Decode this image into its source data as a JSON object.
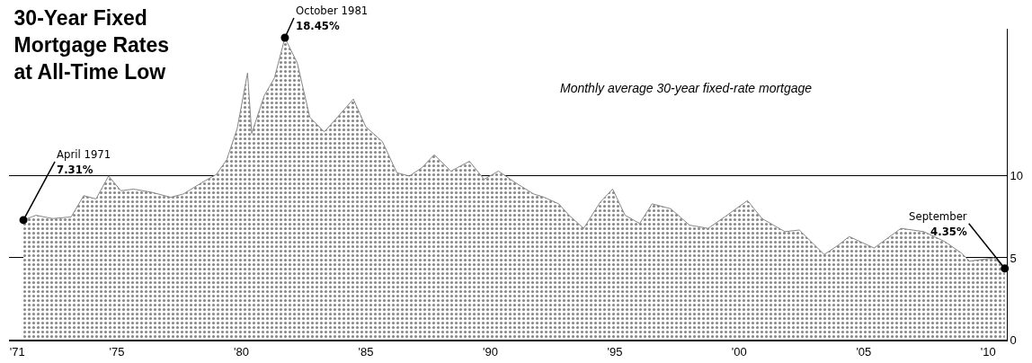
{
  "chart_data": {
    "type": "area",
    "title": "30-Year Fixed\nMortgage Rates\nat All-Time Low",
    "annotations": [
      "Monthly average 30-year fixed-rate mortgage",
      {
        "text": "April 1971\n7.31%",
        "x": "1971-04",
        "y": 7.31
      },
      {
        "text": "October 1981\n18.45%",
        "x": "1981-10",
        "y": 18.45
      },
      {
        "text": "September\n4.35%",
        "x": "2010-09",
        "y": 4.35
      }
    ],
    "x": [
      "1971-04",
      "1971-10",
      "1972-06",
      "1973-03",
      "1973-09",
      "1974-03",
      "1974-09",
      "1975-03",
      "1975-09",
      "1976-06",
      "1977-03",
      "1977-09",
      "1978-06",
      "1979-01",
      "1979-06",
      "1979-11",
      "1980-04",
      "1980-06",
      "1980-12",
      "1981-05",
      "1981-10",
      "1982-04",
      "1982-10",
      "1983-05",
      "1983-10",
      "1984-07",
      "1985-01",
      "1985-09",
      "1986-04",
      "1986-10",
      "1987-04",
      "1987-10",
      "1988-06",
      "1989-03",
      "1989-10",
      "1990-05",
      "1991-01",
      "1991-10",
      "1992-03",
      "1992-10",
      "1993-03",
      "1993-10",
      "1994-06",
      "1994-12",
      "1995-06",
      "1996-01",
      "1996-07",
      "1997-04",
      "1998-01",
      "1998-10",
      "1999-06",
      "2000-05",
      "2000-12",
      "2001-11",
      "2002-06",
      "2003-06",
      "2004-01",
      "2004-06",
      "2005-06",
      "2006-07",
      "2007-06",
      "2008-04",
      "2008-12",
      "2009-04",
      "2009-10",
      "2010-04",
      "2010-09"
    ],
    "values": [
      7.31,
      7.6,
      7.4,
      7.5,
      8.8,
      8.6,
      10,
      9.1,
      9.2,
      9,
      8.7,
      8.9,
      9.6,
      10.1,
      11,
      12.9,
      16.3,
      12.6,
      14.9,
      16,
      18.45,
      16.9,
      13.6,
      12.7,
      13.4,
      14.7,
      13,
      12.1,
      10.2,
      10,
      10.5,
      11.3,
      10.3,
      10.9,
      9.8,
      10.3,
      9.6,
      8.9,
      8.7,
      8.3,
      7.6,
      6.8,
      8.4,
      9.2,
      7.6,
      7.1,
      8.3,
      8,
      7,
      6.8,
      7.5,
      8.5,
      7.4,
      6.6,
      6.7,
      5.2,
      5.8,
      6.3,
      5.6,
      6.8,
      6.6,
      6,
      5.3,
      4.8,
      4.9,
      5,
      4.35
    ],
    "color": "#888888",
    "xlim": [
      "1970-09",
      "2010-10"
    ],
    "xticks": [
      {
        "value": "1971",
        "label": "'71"
      },
      {
        "value": "1975",
        "label": "'75"
      },
      {
        "value": "1980",
        "label": "'80"
      },
      {
        "value": "1985",
        "label": "'85"
      },
      {
        "value": "1990",
        "label": "'90"
      },
      {
        "value": "1995",
        "label": "'95"
      },
      {
        "value": "2000",
        "label": "'00"
      },
      {
        "value": "2005",
        "label": "'05"
      },
      {
        "value": "2010",
        "label": "'10"
      }
    ],
    "ylim": [
      0,
      19
    ],
    "yticks": [
      0,
      5,
      10
    ],
    "grid": "y",
    "legend": false
  }
}
